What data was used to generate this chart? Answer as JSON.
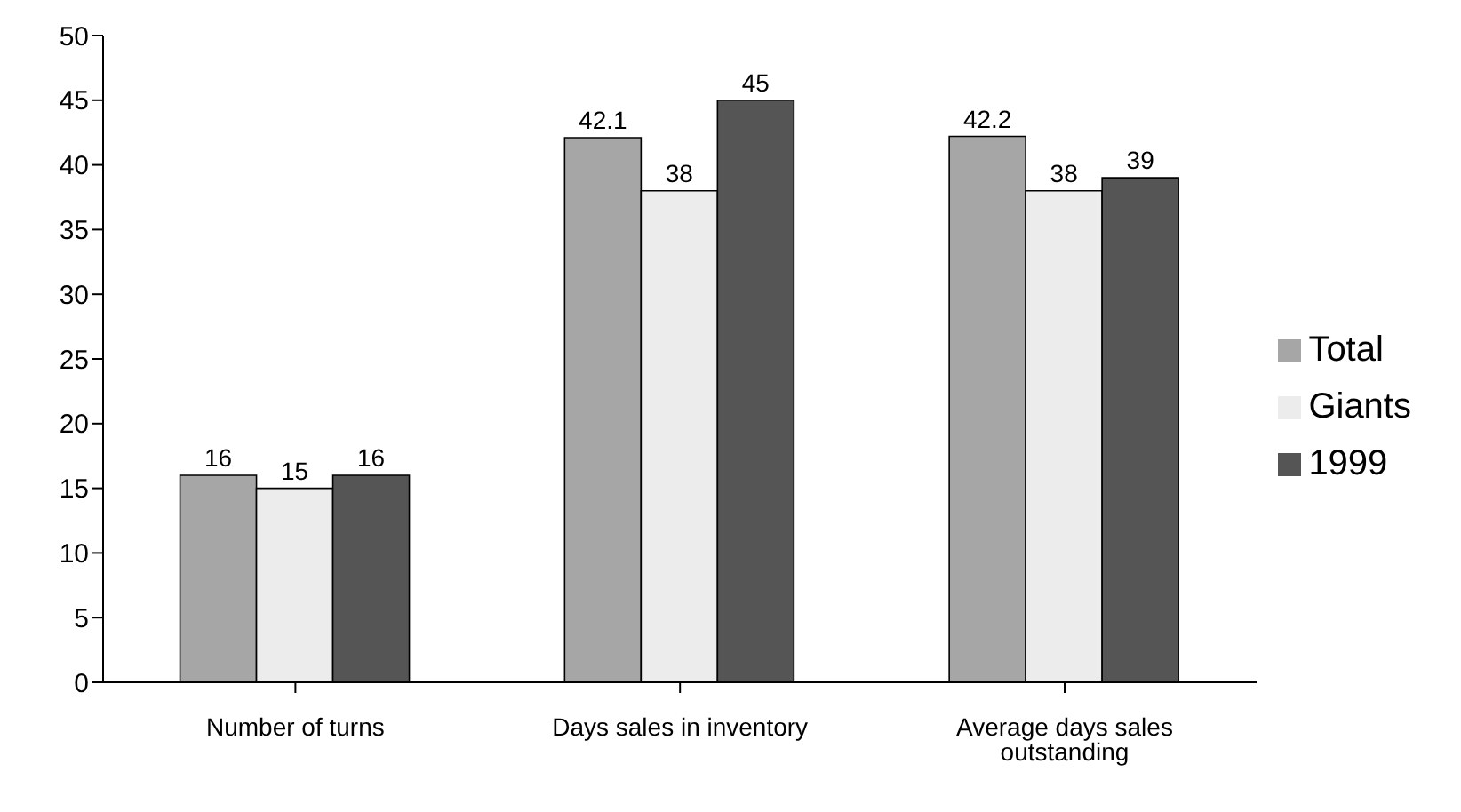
{
  "chart_data": {
    "type": "bar",
    "categories": [
      "Number of turns",
      "Days sales in inventory",
      "Average days sales outstanding"
    ],
    "series": [
      {
        "name": "Total",
        "color": "#a6a6a6",
        "values": [
          16,
          42.1,
          42.2
        ]
      },
      {
        "name": "Giants",
        "color": "#ececec",
        "values": [
          15,
          38,
          38
        ]
      },
      {
        "name": "1999",
        "color": "#555555",
        "values": [
          16,
          45,
          39
        ]
      }
    ],
    "ylim": [
      0,
      50
    ],
    "yticks": [
      0,
      5,
      10,
      15,
      20,
      25,
      30,
      35,
      40,
      45,
      50
    ],
    "grid": false,
    "legend": "right",
    "data_labels": true
  }
}
